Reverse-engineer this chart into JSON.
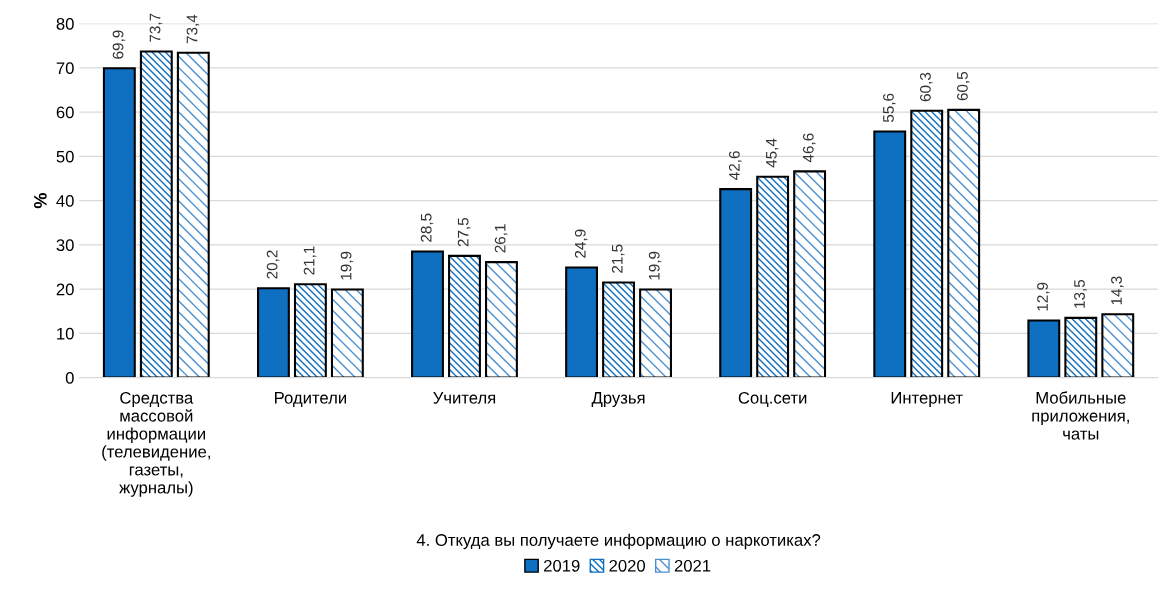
{
  "chart_data": {
    "type": "bar",
    "categories": [
      "Средства\nмассовой\nинформации\n(телевидение,\nгазеты,\nжурналы)",
      "Родители",
      "Учителя",
      "Друзья",
      "Соц.сети",
      "Интернет",
      "Мобильные\nприложения,\nчаты"
    ],
    "series": [
      {
        "name": "2019",
        "color": "#0f6fc0",
        "values": [
          69.9,
          20.2,
          28.5,
          24.9,
          42.6,
          55.6,
          12.9
        ],
        "value_labels": [
          "69,9",
          "20,2",
          "28,5",
          "24,9",
          "42,6",
          "55,6",
          "12,9"
        ]
      },
      {
        "name": "2020",
        "color": "#0f6fc0",
        "values": [
          73.7,
          21.1,
          27.5,
          21.5,
          45.4,
          60.3,
          13.5
        ],
        "value_labels": [
          "73,7",
          "21,1",
          "27,5",
          "21,5",
          "45,4",
          "60,3",
          "13,5"
        ]
      },
      {
        "name": "2021",
        "color": "#4a90d0",
        "values": [
          73.4,
          19.9,
          26.1,
          19.9,
          46.6,
          60.5,
          14.3
        ],
        "value_labels": [
          "73,4",
          "19,9",
          "26,1",
          "19,9",
          "46,6",
          "60,5",
          "14,3"
        ]
      }
    ],
    "ylabel": "%",
    "xlabel": "4. Откуда вы получаете информацию о наркотиках?",
    "ylim": [
      0,
      80
    ],
    "yticks": [
      0,
      10,
      20,
      30,
      40,
      50,
      60,
      70,
      80
    ],
    "grid": "y",
    "legend": "bottom"
  }
}
